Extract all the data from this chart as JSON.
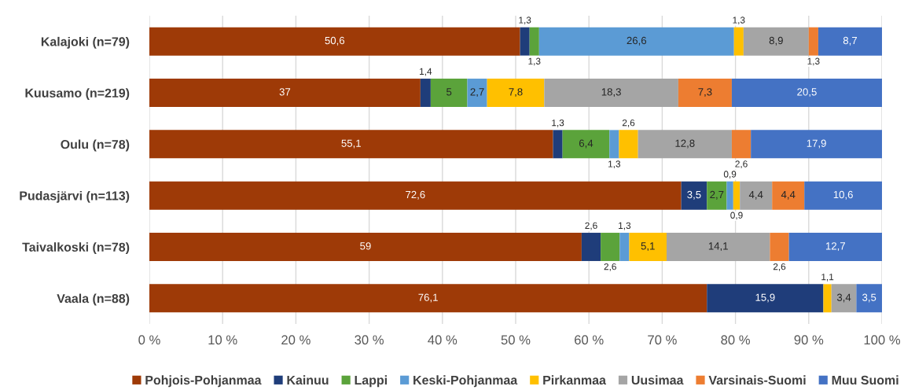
{
  "chart_data": {
    "type": "bar",
    "orientation": "horizontal",
    "stacked": true,
    "categories": [
      "Kalajoki (n=79)",
      "Kuusamo (n=219)",
      "Oulu (n=78)",
      "Pudasjärvi (n=113)",
      "Taivalkoski (n=78)",
      "Vaala (n=88)"
    ],
    "series": [
      {
        "name": "Pohjois-Pohjanmaa",
        "color": "#9e3a07",
        "values": [
          50.6,
          37,
          55.1,
          72.6,
          59,
          76.1
        ],
        "value_labels": [
          "50,6",
          "37",
          "55,1",
          "72,6",
          "59",
          "76,1"
        ]
      },
      {
        "name": "Kainuu",
        "color": "#1f3d7a",
        "values": [
          1.3,
          1.4,
          1.3,
          3.5,
          2.6,
          15.9
        ],
        "value_labels": [
          "1,3",
          "1,4",
          "1,3",
          "3,5",
          "2,6",
          "15,9"
        ]
      },
      {
        "name": "Lappi",
        "color": "#5ba33b",
        "values": [
          1.3,
          5,
          6.4,
          2.7,
          2.6,
          null
        ],
        "value_labels": [
          "1,3",
          "5",
          "6,4",
          "2,7",
          "2,6",
          null
        ]
      },
      {
        "name": "Keski-Pohjanmaa",
        "color": "#5b9bd5",
        "values": [
          26.6,
          2.7,
          1.3,
          0.9,
          1.3,
          null
        ],
        "value_labels": [
          "26,6",
          "2,7",
          "1,3",
          "0,9",
          "1,3",
          null
        ]
      },
      {
        "name": "Pirkanmaa",
        "color": "#ffc000",
        "values": [
          1.3,
          7.8,
          2.6,
          0.9,
          5.1,
          1.1
        ],
        "value_labels": [
          "1,3",
          "7,8",
          "2,6",
          "0,9",
          "5,1",
          "1,1"
        ]
      },
      {
        "name": "Uusimaa",
        "color": "#a5a5a5",
        "values": [
          8.9,
          18.3,
          12.8,
          4.4,
          14.1,
          3.4
        ],
        "value_labels": [
          "8,9",
          "18,3",
          "12,8",
          "4,4",
          "14,1",
          "3,4"
        ]
      },
      {
        "name": "Varsinais-Suomi",
        "color": "#ed7d31",
        "values": [
          1.3,
          7.3,
          2.6,
          4.4,
          2.6,
          null
        ],
        "value_labels": [
          "1,3",
          "7,3",
          "2,6",
          "4,4",
          "2,6",
          null
        ]
      },
      {
        "name": "Muu Suomi",
        "color": "#4472c4",
        "values": [
          8.7,
          20.5,
          17.9,
          10.6,
          12.7,
          3.5
        ],
        "value_labels": [
          "8,7",
          "20,5",
          "17,9",
          "10,6",
          "12,7",
          "3,5"
        ]
      }
    ],
    "xlim": [
      0,
      100
    ],
    "xticks": [
      {
        "value": 0,
        "label": "0 %"
      },
      {
        "value": 10,
        "label": "10 %"
      },
      {
        "value": 20,
        "label": "20 %"
      },
      {
        "value": 30,
        "label": "30 %"
      },
      {
        "value": 40,
        "label": "40 %"
      },
      {
        "value": 50,
        "label": "50 %"
      },
      {
        "value": 60,
        "label": "60 %"
      },
      {
        "value": 70,
        "label": "70 %"
      },
      {
        "value": 80,
        "label": "80 %"
      },
      {
        "value": 90,
        "label": "90 %"
      },
      {
        "value": 100,
        "label": "100 %"
      }
    ],
    "grid": "x",
    "legend": "bottom"
  }
}
